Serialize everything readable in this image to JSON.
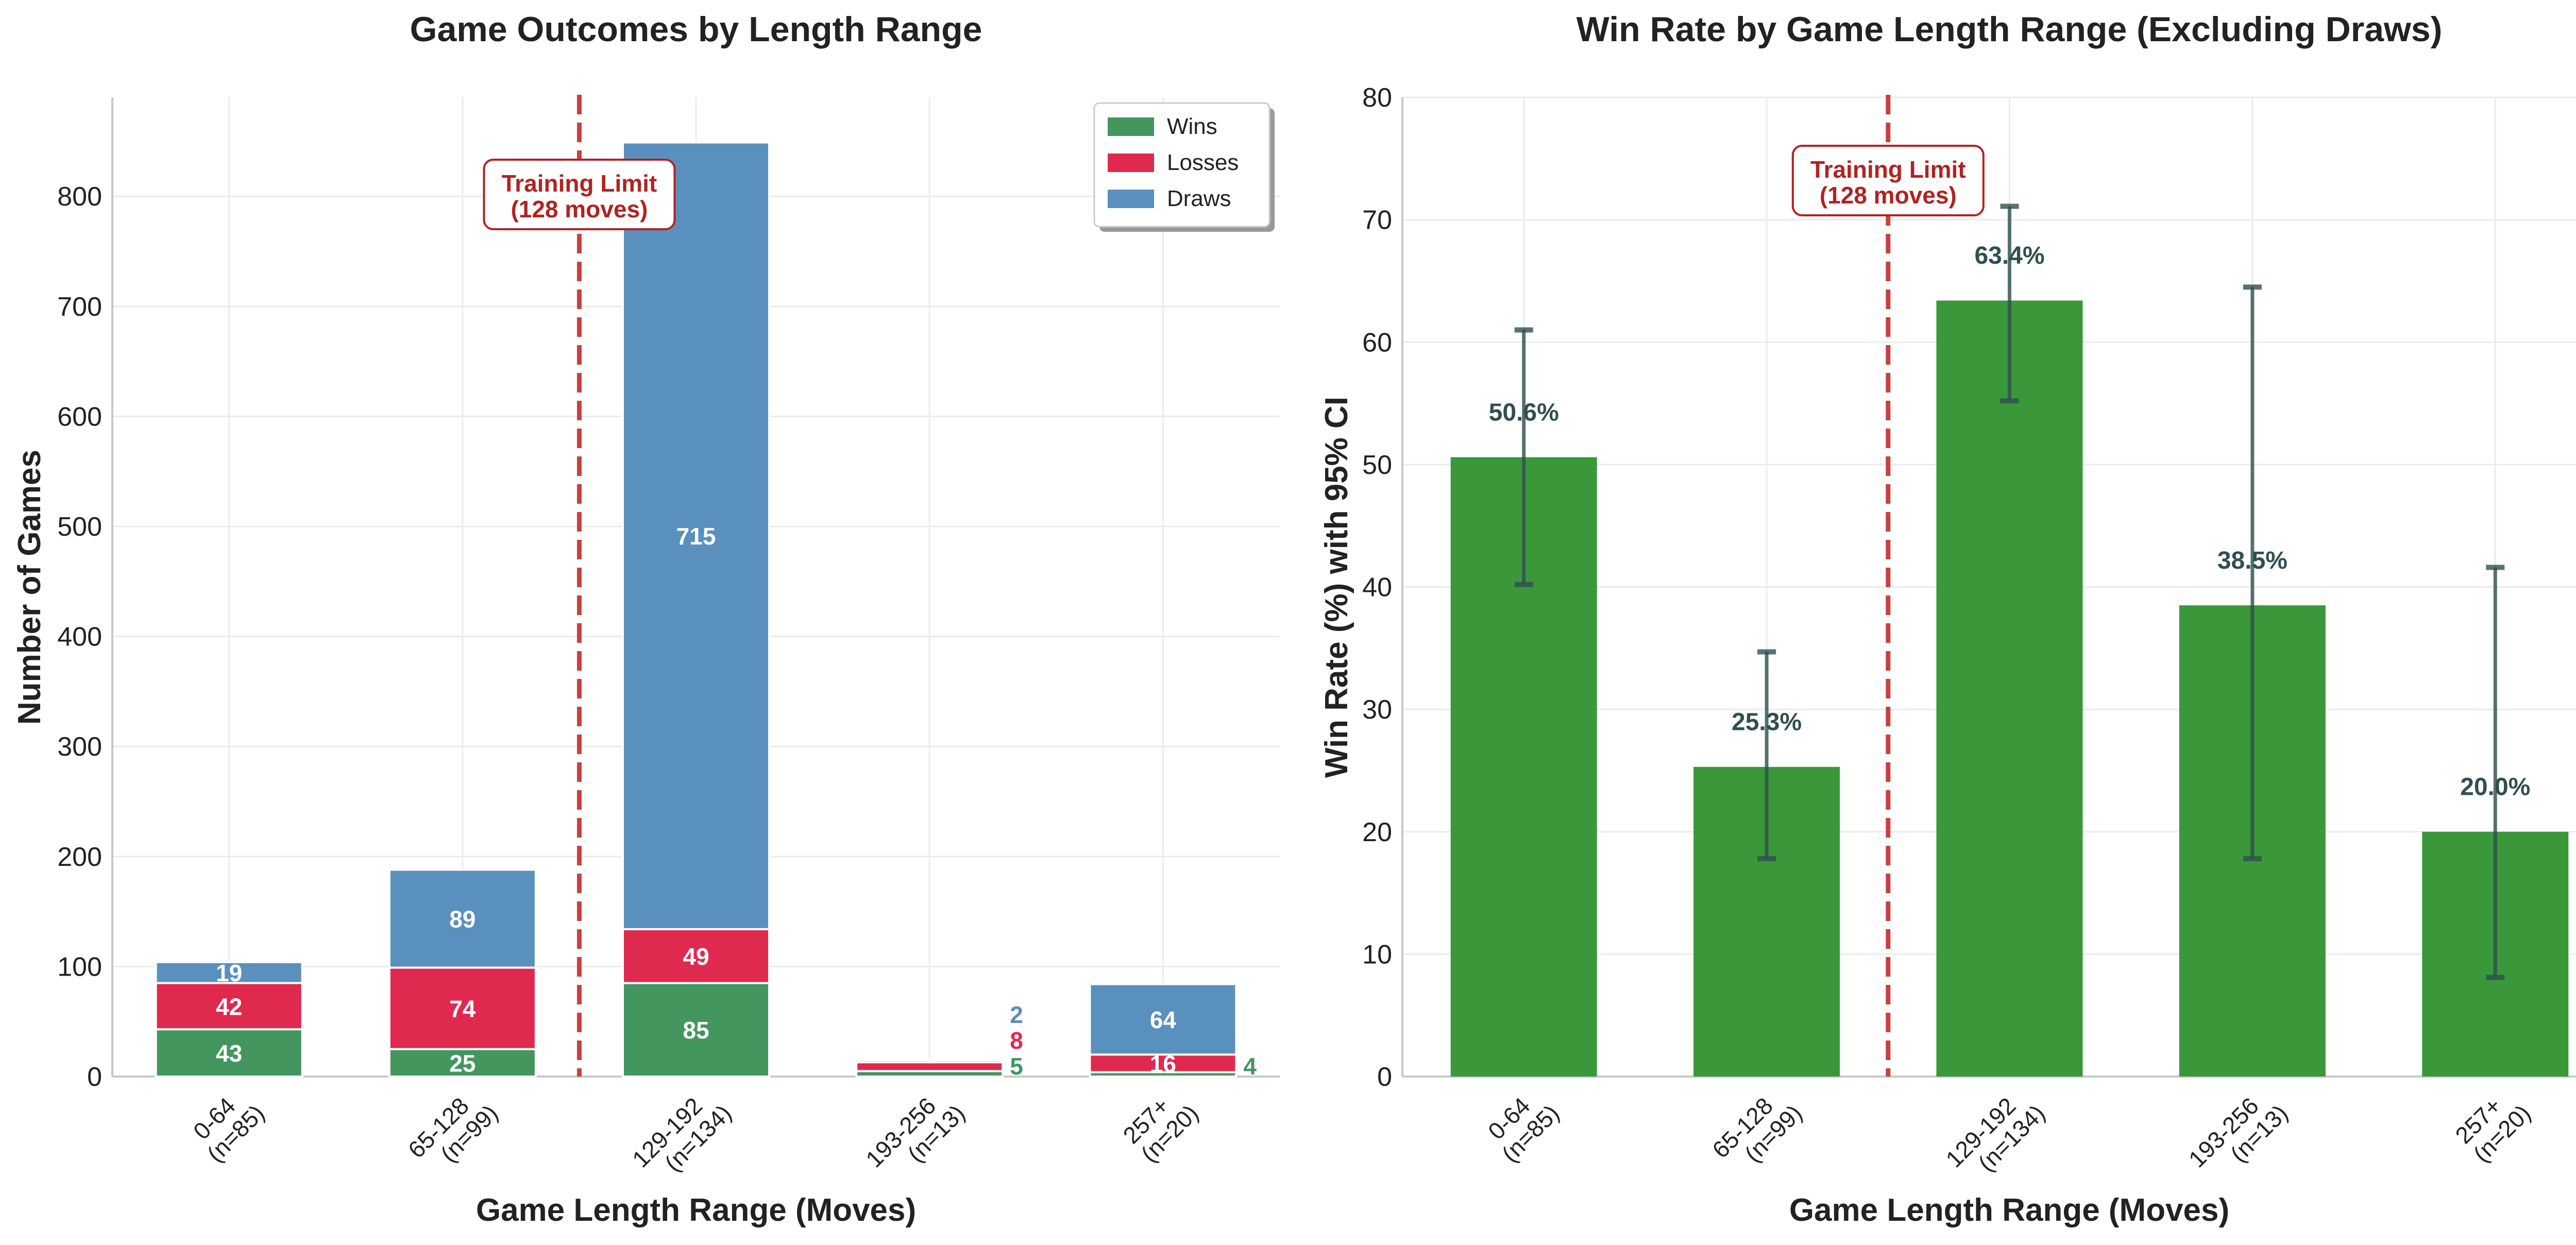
{
  "chart_data": [
    {
      "type": "bar",
      "stacked": true,
      "title": "Game Outcomes by Length Range",
      "xlabel": "Game Length Range (Moves)",
      "ylabel": "Number of Games",
      "categories": [
        "0-64\n(n=85)",
        "65-128\n(n=99)",
        "129-192\n(n=134)",
        "193-256\n(n=13)",
        "257+\n(n=20)"
      ],
      "series": [
        {
          "name": "Wins",
          "color": "#44965f",
          "values": [
            43,
            25,
            85,
            5,
            4
          ]
        },
        {
          "name": "Losses",
          "color": "#e0294e",
          "values": [
            42,
            74,
            49,
            8,
            16
          ]
        },
        {
          "name": "Draws",
          "color": "#5a90bd",
          "values": [
            19,
            89,
            715,
            2,
            64
          ]
        }
      ],
      "ylim": [
        0,
        890
      ],
      "yticks": [
        0,
        100,
        200,
        300,
        400,
        500,
        600,
        700,
        800
      ],
      "grid": true,
      "legend": "top-right",
      "annotation": {
        "text": [
          "Training Limit",
          "(128 moves)"
        ],
        "x_position": 1.5,
        "color": "#b22222"
      }
    },
    {
      "type": "bar",
      "title": "Win Rate by Game Length Range (Excluding Draws)",
      "xlabel": "Game Length Range (Moves)",
      "ylabel": "Win Rate (%) with 95% CI",
      "categories": [
        "0-64\n(n=85)",
        "65-128\n(n=99)",
        "129-192\n(n=134)",
        "193-256\n(n=13)",
        "257+\n(n=20)"
      ],
      "values": [
        50.6,
        25.3,
        63.4,
        38.5,
        20.0
      ],
      "labels": [
        "50.6%",
        "25.3%",
        "63.4%",
        "38.5%",
        "20.0%"
      ],
      "ci_low": [
        40.2,
        17.8,
        55.2,
        17.8,
        8.1
      ],
      "ci_high": [
        61.0,
        34.7,
        71.1,
        64.5,
        41.6
      ],
      "color": "#3a983a",
      "errorbar_color": "#2f4f4f",
      "ylim": [
        0,
        80
      ],
      "yticks": [
        0,
        10,
        20,
        30,
        40,
        50,
        60,
        70,
        80
      ],
      "grid": true,
      "annotation": {
        "text": [
          "Training Limit",
          "(128 moves)"
        ],
        "x_position": 1.5,
        "color": "#b22222"
      }
    }
  ]
}
